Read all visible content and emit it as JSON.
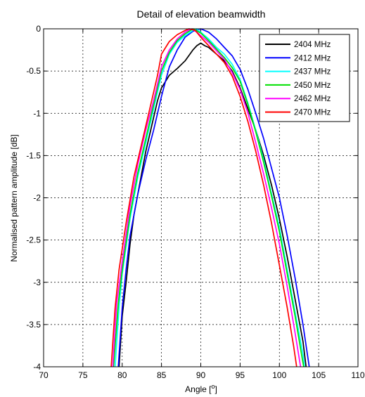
{
  "chart_data": {
    "type": "line",
    "title": "Detail of elevation beamwidth",
    "xlabel": "Angle [",
    "xlabel_sup": "o",
    "xlabel_end": "]",
    "ylabel": "Normalised pattern amplitude [dB]",
    "xlim": [
      70,
      110
    ],
    "ylim": [
      -4,
      0
    ],
    "xticks": [
      "70",
      "75",
      "80",
      "85",
      "90",
      "95",
      "100",
      "105",
      "110"
    ],
    "yticks": [
      "0",
      "-0.5",
      "-1",
      "-1.5",
      "-2",
      "-2.5",
      "-3",
      "-3.5",
      "-4"
    ],
    "grid": "on",
    "legend_position": "top-right",
    "series": [
      {
        "name": "2404 MHz",
        "color": "#000000",
        "points": [
          [
            79.6,
            -4
          ],
          [
            80,
            -3.4
          ],
          [
            80.5,
            -3.0
          ],
          [
            81,
            -2.55
          ],
          [
            81.5,
            -2.2
          ],
          [
            82,
            -1.95
          ],
          [
            82.5,
            -1.7
          ],
          [
            83,
            -1.45
          ],
          [
            83.5,
            -1.25
          ],
          [
            84,
            -1.05
          ],
          [
            84.5,
            -0.85
          ],
          [
            85,
            -0.7
          ],
          [
            86,
            -0.55
          ],
          [
            87,
            -0.47
          ],
          [
            88,
            -0.38
          ],
          [
            89,
            -0.25
          ],
          [
            89.5,
            -0.2
          ],
          [
            90,
            -0.17
          ],
          [
            90.5,
            -0.2
          ],
          [
            91,
            -0.22
          ],
          [
            92,
            -0.3
          ],
          [
            93,
            -0.38
          ],
          [
            94,
            -0.5
          ],
          [
            95,
            -0.7
          ],
          [
            96,
            -0.95
          ],
          [
            97,
            -1.2
          ],
          [
            98,
            -1.5
          ],
          [
            99,
            -1.85
          ],
          [
            100,
            -2.25
          ],
          [
            101,
            -2.7
          ],
          [
            102,
            -3.2
          ],
          [
            103,
            -3.7
          ],
          [
            103.4,
            -4
          ]
        ]
      },
      {
        "name": "2412 MHz",
        "color": "#0000ff",
        "points": [
          [
            79.5,
            -4
          ],
          [
            80,
            -3.3
          ],
          [
            80.5,
            -2.85
          ],
          [
            81,
            -2.45
          ],
          [
            82,
            -1.95
          ],
          [
            83,
            -1.55
          ],
          [
            84,
            -1.2
          ],
          [
            85,
            -0.8
          ],
          [
            86,
            -0.45
          ],
          [
            87,
            -0.25
          ],
          [
            88,
            -0.1
          ],
          [
            89,
            -0.03
          ],
          [
            90,
            0
          ],
          [
            91,
            -0.04
          ],
          [
            92,
            -0.12
          ],
          [
            93,
            -0.22
          ],
          [
            94,
            -0.32
          ],
          [
            95,
            -0.48
          ],
          [
            96,
            -0.72
          ],
          [
            97,
            -1.0
          ],
          [
            98,
            -1.3
          ],
          [
            99,
            -1.65
          ],
          [
            100,
            -2.0
          ],
          [
            101,
            -2.45
          ],
          [
            102,
            -2.95
          ],
          [
            103,
            -3.5
          ],
          [
            103.8,
            -4
          ]
        ]
      },
      {
        "name": "2437 MHz",
        "color": "#00ffff",
        "points": [
          [
            79.1,
            -4
          ],
          [
            79.6,
            -3.3
          ],
          [
            80,
            -2.9
          ],
          [
            81,
            -2.25
          ],
          [
            82,
            -1.75
          ],
          [
            83,
            -1.35
          ],
          [
            84,
            -0.95
          ],
          [
            85,
            -0.55
          ],
          [
            86,
            -0.3
          ],
          [
            87,
            -0.16
          ],
          [
            88,
            -0.08
          ],
          [
            89,
            -0.02
          ],
          [
            89.5,
            0
          ],
          [
            90,
            -0.04
          ],
          [
            91,
            -0.12
          ],
          [
            92,
            -0.22
          ],
          [
            93,
            -0.3
          ],
          [
            94,
            -0.42
          ],
          [
            95,
            -0.6
          ],
          [
            96,
            -0.88
          ],
          [
            97,
            -1.2
          ],
          [
            98,
            -1.55
          ],
          [
            99,
            -1.95
          ],
          [
            100,
            -2.35
          ],
          [
            101,
            -2.85
          ],
          [
            102,
            -3.35
          ],
          [
            103,
            -3.85
          ],
          [
            103.2,
            -4
          ]
        ]
      },
      {
        "name": "2450 MHz",
        "color": "#00e000",
        "points": [
          [
            78.9,
            -4
          ],
          [
            79.5,
            -3.25
          ],
          [
            80,
            -2.85
          ],
          [
            81,
            -2.2
          ],
          [
            82,
            -1.7
          ],
          [
            83,
            -1.3
          ],
          [
            84,
            -0.9
          ],
          [
            85,
            -0.5
          ],
          [
            86,
            -0.28
          ],
          [
            87,
            -0.14
          ],
          [
            88,
            -0.06
          ],
          [
            89,
            0
          ],
          [
            90,
            -0.05
          ],
          [
            91,
            -0.14
          ],
          [
            92,
            -0.24
          ],
          [
            93,
            -0.34
          ],
          [
            94,
            -0.46
          ],
          [
            95,
            -0.62
          ],
          [
            96,
            -0.9
          ],
          [
            97,
            -1.22
          ],
          [
            98,
            -1.58
          ],
          [
            99,
            -1.98
          ],
          [
            100,
            -2.4
          ],
          [
            101,
            -2.9
          ],
          [
            102,
            -3.4
          ],
          [
            102.9,
            -3.9
          ],
          [
            103.1,
            -4
          ]
        ]
      },
      {
        "name": "2462 MHz",
        "color": "#ff00ff",
        "points": [
          [
            78.8,
            -4
          ],
          [
            79.3,
            -3.25
          ],
          [
            80,
            -2.75
          ],
          [
            81,
            -2.1
          ],
          [
            82,
            -1.6
          ],
          [
            83,
            -1.2
          ],
          [
            84,
            -0.85
          ],
          [
            85,
            -0.45
          ],
          [
            86,
            -0.25
          ],
          [
            87,
            -0.12
          ],
          [
            88,
            -0.04
          ],
          [
            88.8,
            0
          ],
          [
            89.5,
            -0.04
          ],
          [
            90,
            -0.08
          ],
          [
            91,
            -0.16
          ],
          [
            92,
            -0.26
          ],
          [
            93,
            -0.36
          ],
          [
            94,
            -0.52
          ],
          [
            95,
            -0.72
          ],
          [
            96,
            -1.0
          ],
          [
            97,
            -1.35
          ],
          [
            98,
            -1.72
          ],
          [
            99,
            -2.12
          ],
          [
            100,
            -2.55
          ],
          [
            101,
            -3.05
          ],
          [
            102,
            -3.6
          ],
          [
            102.7,
            -4
          ]
        ]
      },
      {
        "name": "2470 MHz",
        "color": "#ff0000",
        "points": [
          [
            78.6,
            -4
          ],
          [
            79.1,
            -3.3
          ],
          [
            79.6,
            -2.85
          ],
          [
            80.5,
            -2.3
          ],
          [
            81.5,
            -1.75
          ],
          [
            82.5,
            -1.35
          ],
          [
            83.5,
            -0.95
          ],
          [
            84.5,
            -0.55
          ],
          [
            85,
            -0.3
          ],
          [
            86,
            -0.15
          ],
          [
            87,
            -0.07
          ],
          [
            88,
            -0.02
          ],
          [
            88.5,
            0
          ],
          [
            89.3,
            -0.02
          ],
          [
            90,
            -0.1
          ],
          [
            91,
            -0.2
          ],
          [
            92,
            -0.3
          ],
          [
            93,
            -0.4
          ],
          [
            94,
            -0.56
          ],
          [
            95,
            -0.8
          ],
          [
            96,
            -1.1
          ],
          [
            97,
            -1.45
          ],
          [
            98,
            -1.85
          ],
          [
            99,
            -2.3
          ],
          [
            100,
            -2.8
          ],
          [
            101,
            -3.3
          ],
          [
            101.8,
            -3.75
          ],
          [
            102.2,
            -4
          ]
        ]
      }
    ]
  }
}
